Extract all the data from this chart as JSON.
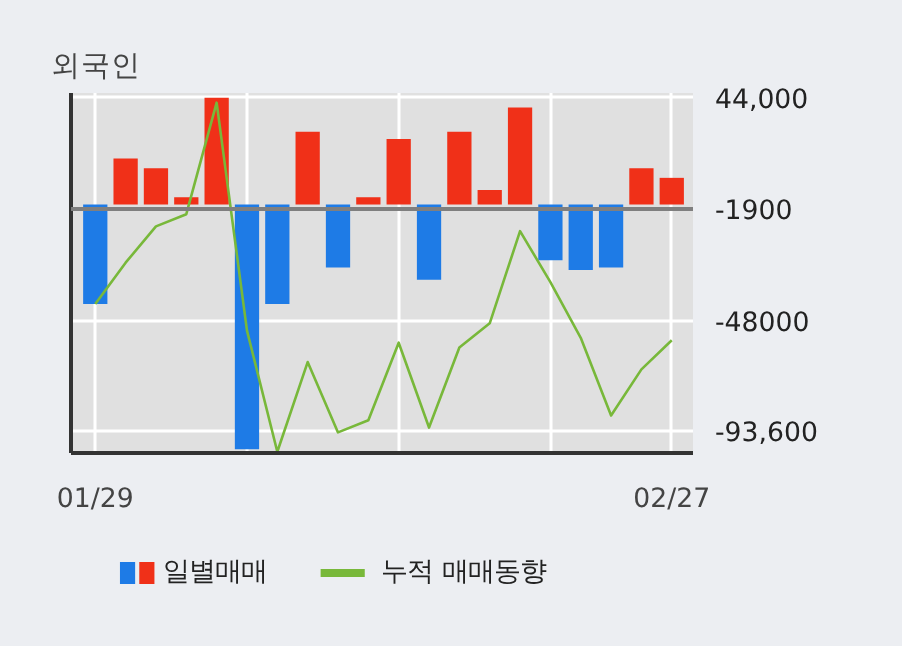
{
  "chart_data": {
    "type": "bar",
    "title": "외국인",
    "categories": [
      "01/29",
      null,
      null,
      null,
      null,
      null,
      null,
      null,
      null,
      null,
      null,
      null,
      null,
      null,
      null,
      null,
      null,
      null,
      null,
      "02/27"
    ],
    "series": [
      {
        "name": "일별매매",
        "colors": [
          "#1e7be6",
          "#f03018",
          "#f03018",
          "#f03018",
          "#f03018",
          "#1e7be6",
          "#1e7be6",
          "#f03018",
          "#1e7be6",
          "#f03018",
          "#f03018",
          "#1e7be6",
          "#f03018",
          "#f03018",
          "#f03018",
          "#1e7be6",
          "#1e7be6",
          "#1e7be6",
          "#f03018",
          "#f03018"
        ],
        "values": [
          -41000,
          19000,
          15000,
          3000,
          44000,
          -101000,
          -41000,
          30000,
          -26000,
          3000,
          27000,
          -31000,
          30000,
          6000,
          40000,
          -23000,
          -27000,
          -26000,
          15000,
          11000
        ]
      },
      {
        "name": "누적 매매동향",
        "type": "line",
        "color": "#78b83a",
        "values": [
          -41000,
          -24000,
          -9000,
          -4000,
          42000,
          -52000,
          -102000,
          -65000,
          -94000,
          -89000,
          -57000,
          -92000,
          -59000,
          -49000,
          -11000,
          -32000,
          -55000,
          -87000,
          -68000,
          -56000
        ]
      }
    ],
    "ylim": [
      -102500,
      46000
    ],
    "yticks": [
      {
        "value": 44000,
        "label": "44,000"
      },
      -1900,
      -48000,
      {
        "value": -93600,
        "label": "-93,600"
      }
    ],
    "ref_lines": [
      {
        "axis": "y",
        "value": -1900,
        "color": "#7f7f7f"
      }
    ],
    "grid": true,
    "legend": "bottom"
  }
}
